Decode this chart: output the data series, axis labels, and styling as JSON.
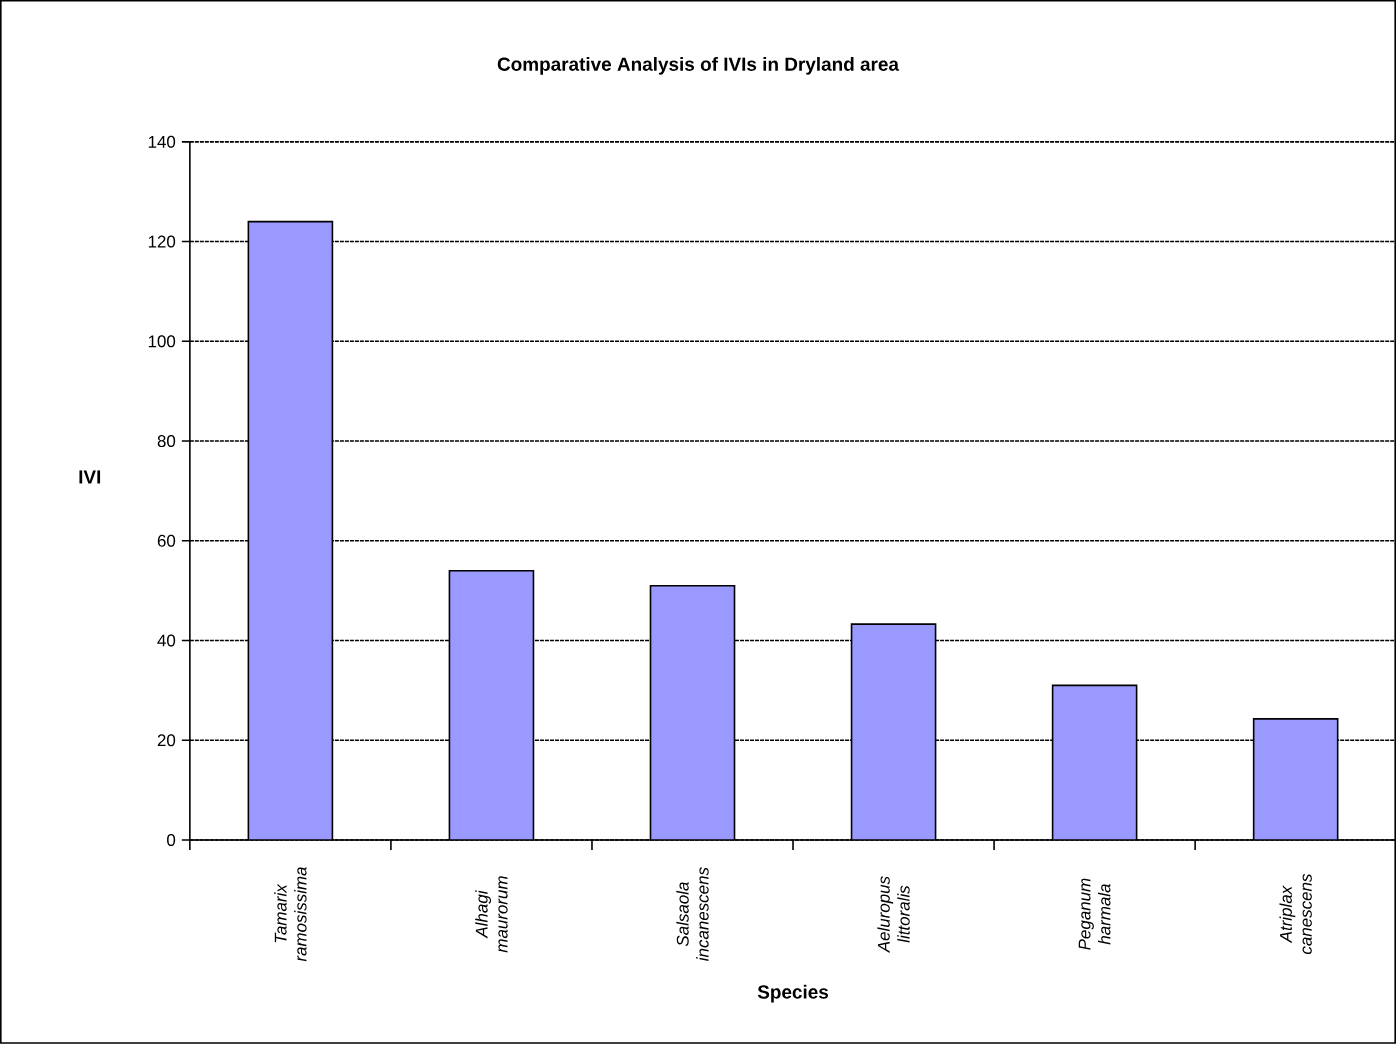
{
  "chart_data": {
    "type": "bar",
    "title": "Comparative Analysis of IVIs in Dryland area",
    "xlabel": "Species",
    "ylabel": "IVI",
    "categories": [
      "Tamarix ramosissima",
      "Alhagi maurorum",
      "Salsaola incanescens",
      "Aeluropus littoralis",
      "Peganum harmala",
      "Atriplax canescens"
    ],
    "values": [
      124,
      54,
      51,
      43.3,
      31,
      24.3
    ],
    "color": "#9999ff",
    "ylim": [
      0,
      140
    ],
    "yticks": [
      0,
      20,
      40,
      60,
      80,
      100,
      120,
      140
    ],
    "grid": "y"
  }
}
